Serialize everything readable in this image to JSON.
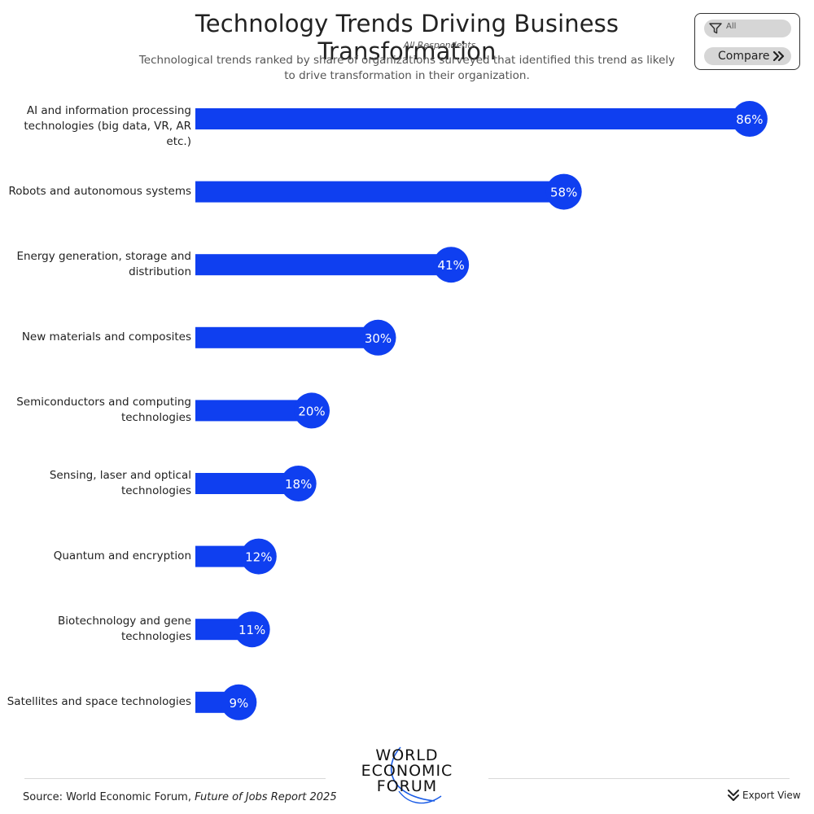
{
  "header": {
    "title": "Technology Trends Driving Business Transformation",
    "filter_label": "All Respondents",
    "subtitle": "Technological trends ranked by share of organizations surveyed that identified this trend as likely to drive transformation in their organization."
  },
  "controls": {
    "filter_value": "All",
    "compare_label": "Compare",
    "filter_icon": "filter-icon",
    "compare_icon": "double-chevron-right-icon"
  },
  "chart_data": {
    "type": "bar",
    "orientation": "horizontal",
    "categories": [
      "AI and information processing technologies (big data, VR, AR etc.)",
      "Robots and autonomous systems",
      "Energy generation, storage and distribution",
      "New materials and composites",
      "Semiconductors and computing technologies",
      "Sensing, laser and optical technologies",
      "Quantum and encryption",
      "Biotechnology and gene technologies",
      "Satellites and space technologies"
    ],
    "values": [
      86,
      58,
      41,
      30,
      20,
      18,
      12,
      11,
      9
    ],
    "value_labels": [
      "86%",
      "58%",
      "41%",
      "30%",
      "20%",
      "18%",
      "12%",
      "11%",
      "9%"
    ],
    "unit": "%",
    "xlim": [
      0,
      100
    ],
    "grid": false,
    "bar_color": "#0f3ff0",
    "label_color": "#ffffff"
  },
  "footer": {
    "source_prefix": "Source: World Economic Forum, ",
    "source_report": "Future of Jobs Report 2025",
    "logo_lines": [
      "WORLD",
      "ECONOMIC",
      "FORUM"
    ],
    "export_label": "Export View",
    "export_icon": "download-chevron-icon"
  },
  "colors": {
    "accent": "#0f3ff0",
    "text": "#222222",
    "pill_bg": "#d6d6d6",
    "logo_arc": "#1a5ce6"
  }
}
